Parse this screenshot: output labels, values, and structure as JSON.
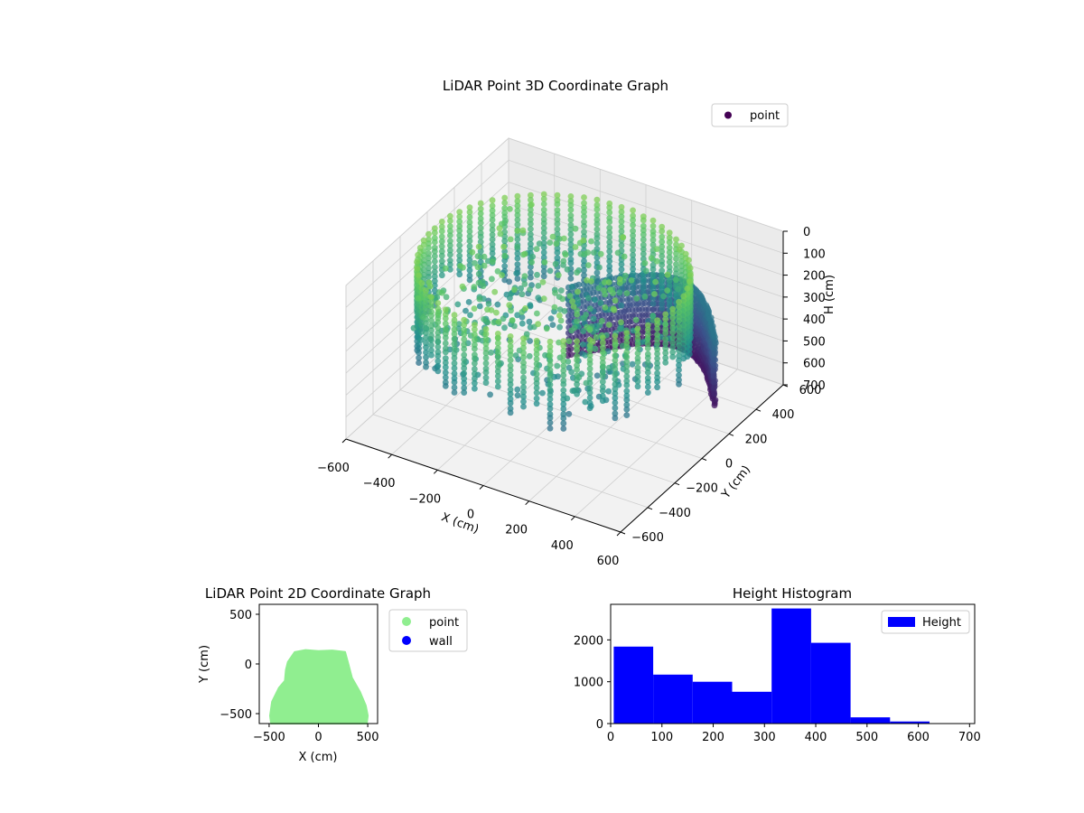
{
  "chart_data": [
    {
      "type": "scatter",
      "projection": "3d",
      "title": "LiDAR Point 3D Coordinate Graph",
      "xlabel": "X (cm)",
      "ylabel": "Y (cm)",
      "zlabel": "H (cm)",
      "xlim": [
        -600,
        600
      ],
      "ylim": [
        -600,
        600
      ],
      "zlim": [
        700,
        0
      ],
      "z_inverted": true,
      "x_ticks": [
        "−600",
        "−400",
        "−200",
        "0",
        "200",
        "400",
        "600"
      ],
      "y_ticks": [
        "−600",
        "−400",
        "−200",
        "0",
        "200",
        "400",
        "600"
      ],
      "z_ticks": [
        "0",
        "100",
        "200",
        "300",
        "400",
        "500",
        "600",
        "700"
      ],
      "colormap": "viridis",
      "colormap_stops": [
        "#440154",
        "#3b528b",
        "#21918c",
        "#5ec962",
        "#fde725"
      ],
      "grid": true,
      "legend": {
        "position": "top-right",
        "entries": [
          {
            "label": "point",
            "color": "#440154"
          }
        ]
      },
      "series": [
        {
          "name": "point",
          "shape": "ring of vertical scan columns, larger wall at back",
          "outer_ring": {
            "x_radius": 520,
            "y_center": -80,
            "y_radius": 500,
            "height_top": 420,
            "height_bottom": 0
          },
          "back_wall": {
            "x_range": [
              -180,
              460
            ],
            "y_range": [
              150,
              600
            ],
            "height_top": 700,
            "height_bottom": 380
          },
          "inner_cloud": {
            "x_range": [
              -400,
              400
            ],
            "y_range": [
              -500,
              300
            ],
            "height_range": [
              0,
              380
            ]
          }
        }
      ]
    },
    {
      "type": "scatter",
      "title": "LiDAR Point 2D Coordinate Graph",
      "xlabel": "X (cm)",
      "ylabel": "Y (cm)",
      "xlim": [
        -600,
        600
      ],
      "ylim": [
        -600,
        600
      ],
      "x_ticks": [
        "−500",
        "0",
        "500"
      ],
      "y_ticks": [
        "−500",
        "0",
        "500"
      ],
      "legend": {
        "position": "outside-right",
        "entries": [
          {
            "label": "point",
            "color": "#90ee90"
          },
          {
            "label": "wall",
            "color": "#0000ff"
          }
        ]
      },
      "series": [
        {
          "name": "point",
          "color": "#90ee90",
          "outline_xy": [
            [
              -480,
              -600
            ],
            [
              -490,
              -520
            ],
            [
              -470,
              -380
            ],
            [
              -400,
              -240
            ],
            [
              -340,
              -170
            ],
            [
              -330,
              -60
            ],
            [
              -310,
              20
            ],
            [
              -240,
              120
            ],
            [
              -130,
              140
            ],
            [
              0,
              130
            ],
            [
              140,
              135
            ],
            [
              270,
              120
            ],
            [
              300,
              10
            ],
            [
              340,
              -140
            ],
            [
              420,
              -280
            ],
            [
              480,
              -420
            ],
            [
              500,
              -520
            ],
            [
              490,
              -600
            ]
          ]
        },
        {
          "name": "wall",
          "color": "#0000ff",
          "points": []
        }
      ]
    },
    {
      "type": "bar",
      "subtype": "histogram",
      "title": "Height Histogram",
      "xlim": [
        0,
        710
      ],
      "ylim": [
        0,
        2850
      ],
      "x_ticks": [
        "0",
        "100",
        "200",
        "300",
        "400",
        "500",
        "600",
        "700"
      ],
      "y_ticks": [
        "0",
        "1000",
        "2000"
      ],
      "color": "#0000ff",
      "legend": {
        "position": "top-right",
        "entries": [
          {
            "label": "Height",
            "color": "#0000ff"
          }
        ]
      },
      "bin_edges": [
        6,
        83,
        160,
        237,
        314,
        391,
        468,
        545,
        622,
        699
      ],
      "values": [
        1840,
        1170,
        1000,
        760,
        2750,
        1930,
        150,
        50,
        5
      ]
    }
  ]
}
